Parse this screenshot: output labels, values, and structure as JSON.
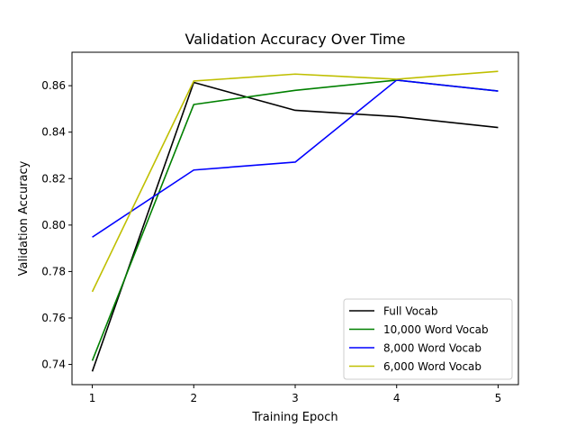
{
  "chart_data": {
    "type": "line",
    "title": "Validation Accuracy Over Time",
    "xlabel": "Training Epoch",
    "ylabel": "Validation Accuracy",
    "x": [
      1,
      2,
      3,
      4,
      5
    ],
    "xticks": [
      "1",
      "2",
      "3",
      "4",
      "5"
    ],
    "xlim": [
      0.8,
      5.2
    ],
    "yticks": [
      "0.74",
      "0.76",
      "0.78",
      "0.80",
      "0.82",
      "0.84",
      "0.86"
    ],
    "ylim": [
      0.7313,
      0.8744
    ],
    "grid": false,
    "legend_position": "lower right",
    "series": [
      {
        "name": "Full Vocab",
        "color": "#000000",
        "values": [
          0.737,
          0.8614,
          0.8494,
          0.8467,
          0.842
        ]
      },
      {
        "name": "10,000 Word Vocab",
        "color": "#008000",
        "values": [
          0.7416,
          0.8519,
          0.858,
          0.8624,
          0.8577
        ]
      },
      {
        "name": "8,000 Word Vocab",
        "color": "#0000ff",
        "values": [
          0.7948,
          0.8237,
          0.8271,
          0.8624,
          0.8577
        ]
      },
      {
        "name": "6,000 Word Vocab",
        "color": "#bfbf00",
        "values": [
          0.7713,
          0.862,
          0.865,
          0.8628,
          0.8662
        ]
      }
    ]
  }
}
